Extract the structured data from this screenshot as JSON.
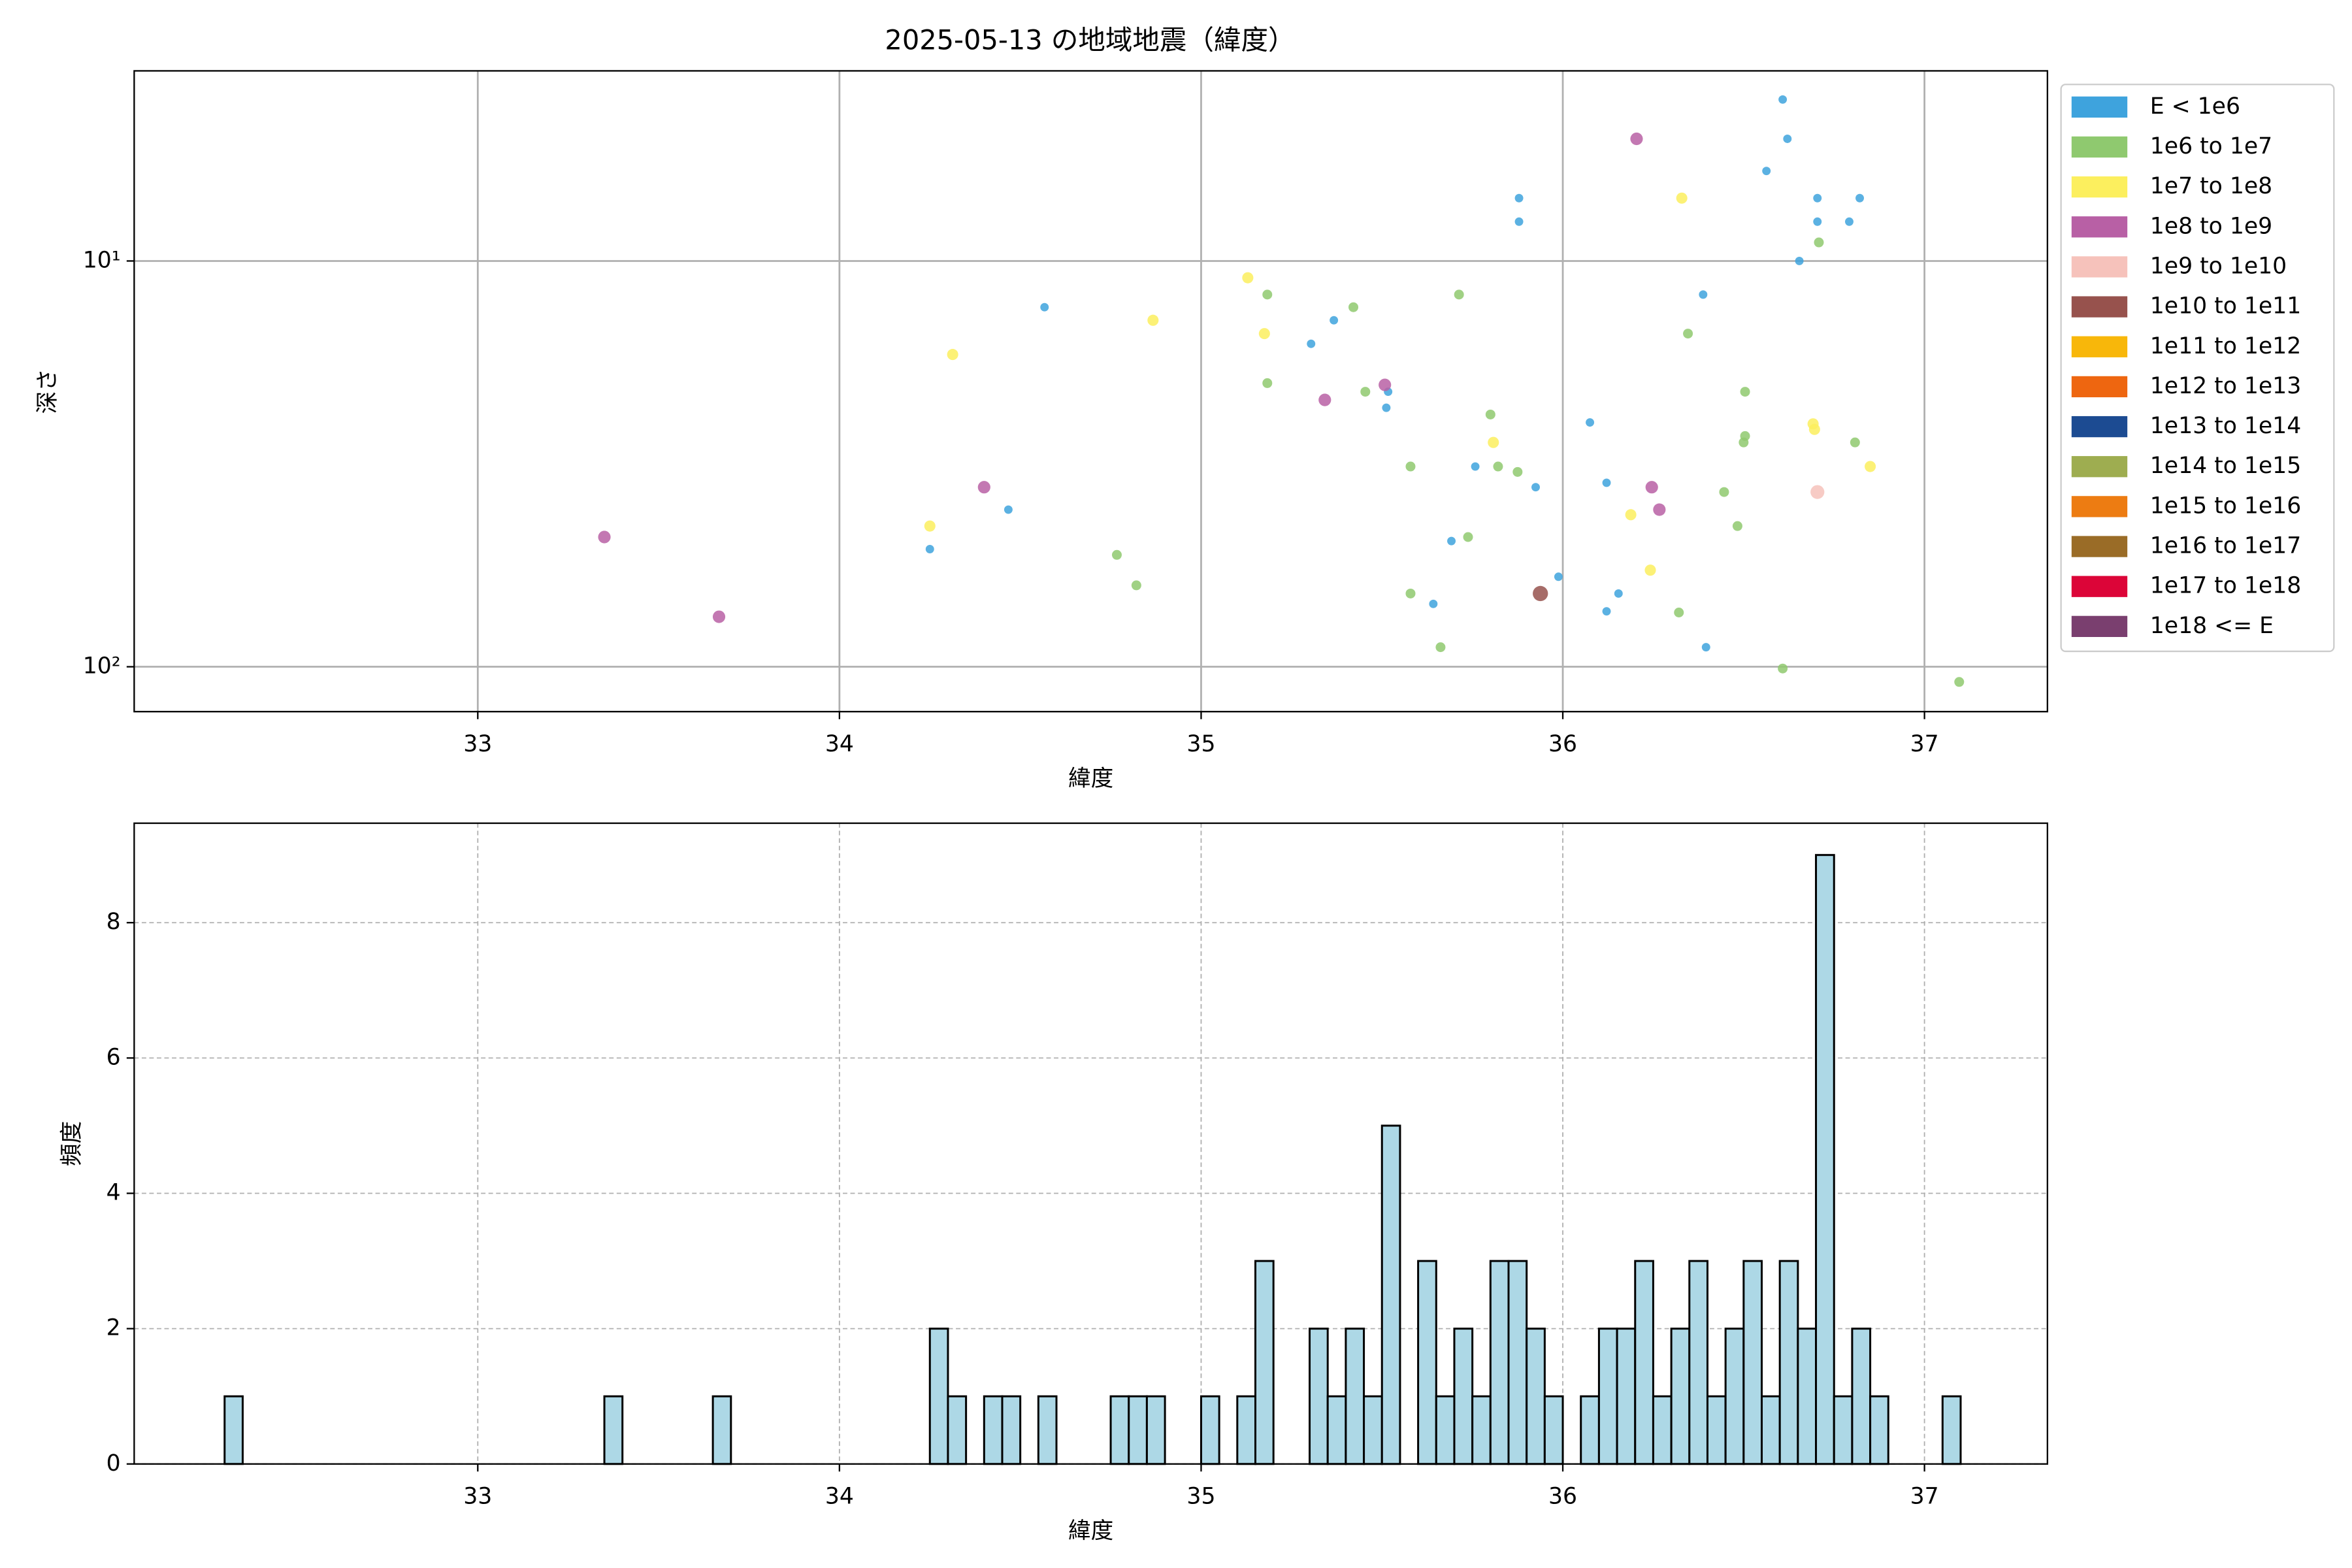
{
  "chart_data": [
    {
      "type": "scatter",
      "title": "2025-05-13 の地域地震（緯度）",
      "xlabel": "緯度",
      "ylabel": "深さ",
      "xlim": [
        32.05,
        37.34
      ],
      "ylim": [
        3.4,
        129
      ],
      "yscale": "log",
      "invert_y": true,
      "xticks": [
        33,
        34,
        35,
        36,
        37
      ],
      "yticks": [
        {
          "value": 10,
          "label": "10¹"
        },
        {
          "value": 100,
          "label": "10²"
        }
      ],
      "grid": true,
      "legend": "outside-right",
      "series": [
        {
          "name": "E < 1e6",
          "color": "#3ea3dd",
          "x": [
            36.608,
            36.621,
            36.563,
            35.879,
            36.704,
            36.821,
            35.879,
            36.704,
            36.792,
            36.654,
            36.388,
            34.567,
            35.367,
            35.304,
            35.517,
            35.512,
            36.075,
            35.758,
            36.121,
            35.925,
            34.467,
            35.692,
            34.25,
            35.988,
            36.154,
            35.642,
            36.121,
            36.396
          ],
          "y": [
            4.0,
            5.0,
            6.0,
            7.0,
            7.0,
            7.0,
            8.0,
            8.0,
            8.0,
            10,
            12.1,
            13.0,
            14.0,
            16.0,
            21.0,
            23.0,
            25.0,
            32.1,
            35.2,
            36.1,
            41,
            49,
            51.3,
            60,
            66,
            70,
            73,
            89.5
          ]
        },
        {
          "name": "1e6 to 1e7",
          "color": "#8fc96f",
          "x": [
            36.708,
            35.183,
            35.713,
            35.421,
            36.346,
            35.183,
            35.454,
            36.504,
            35.8,
            36.504,
            36.5,
            36.808,
            35.579,
            35.821,
            35.875,
            36.446,
            36.483,
            35.738,
            34.767,
            34.821,
            35.579,
            36.321,
            35.662,
            36.608,
            37.096
          ],
          "y": [
            9.0,
            12.1,
            12.1,
            13.0,
            15.1,
            20,
            21,
            21,
            23.9,
            27,
            28,
            28,
            32.1,
            32.1,
            33.1,
            37.1,
            45,
            47.9,
            53,
            63,
            66,
            73.5,
            89.5,
            101,
            109
          ]
        },
        {
          "name": "1e7 to 1e8",
          "color": "#fcef5e",
          "x": [
            35.129,
            34.867,
            35.175,
            34.313,
            36.329,
            35.808,
            36.692,
            36.696,
            36.85,
            34.25,
            36.188,
            36.242
          ],
          "y": [
            11,
            14,
            15.1,
            17,
            7.0,
            28,
            25.2,
            26,
            32.1,
            45,
            42.2,
            57.8
          ]
        },
        {
          "name": "1e8 to 1e9",
          "color": "#b860a5",
          "x": [
            36.204,
            35.508,
            35.342,
            34.4,
            36.246,
            36.267,
            33.35,
            33.667
          ],
          "y": [
            5.0,
            20.2,
            22,
            36.1,
            36.1,
            41,
            47.9,
            75.3
          ]
        },
        {
          "name": "1e9 to 1e10",
          "color": "#f6c2bb",
          "x": [
            36.704
          ],
          "y": [
            37.1
          ]
        },
        {
          "name": "1e10 to 1e11",
          "color": "#97524d",
          "x": [
            35.938
          ],
          "y": [
            66
          ]
        },
        {
          "name": "1e11 to 1e12",
          "color": "#f8b70a",
          "x": [],
          "y": []
        },
        {
          "name": "1e12 to 1e13",
          "color": "#ee6610",
          "x": [],
          "y": []
        },
        {
          "name": "1e13 to 1e14",
          "color": "#1c4b92",
          "x": [],
          "y": []
        },
        {
          "name": "1e14 to 1e15",
          "color": "#9ead50",
          "x": [],
          "y": []
        },
        {
          "name": "1e15 to 1e16",
          "color": "#ed7c12",
          "x": [],
          "y": []
        },
        {
          "name": "1e16 to 1e17",
          "color": "#9a6c27",
          "x": [],
          "y": []
        },
        {
          "name": "1e17 to 1e18",
          "color": "#dc0538",
          "x": [],
          "y": []
        },
        {
          "name": "1e18 <= E",
          "color": "#7a3f6f",
          "x": [],
          "y": []
        }
      ]
    },
    {
      "type": "histogram",
      "xlabel": "緯度",
      "ylabel": "頻度",
      "xlim": [
        32.05,
        37.34
      ],
      "ylim": [
        0,
        9.47
      ],
      "xticks": [
        33,
        34,
        35,
        36,
        37
      ],
      "yticks": [
        0,
        2,
        4,
        6,
        8
      ],
      "grid": true,
      "color": "#add8e6",
      "edgecolor": "#000000",
      "bins": [
        32.3,
        32.35,
        32.4,
        32.45,
        32.5,
        32.55,
        32.6,
        32.65,
        32.7,
        32.75,
        32.8,
        32.85,
        32.9,
        32.95,
        33.0,
        33.05,
        33.1,
        33.15,
        33.2,
        33.25,
        33.3,
        33.35,
        33.4,
        33.45,
        33.5,
        33.55,
        33.6,
        33.65,
        33.7,
        33.75,
        33.8,
        33.85,
        33.9,
        33.95,
        34.0,
        34.05,
        34.1,
        34.15,
        34.2,
        34.25,
        34.3,
        34.35,
        34.4,
        34.45,
        34.5,
        34.55,
        34.6,
        34.65,
        34.7,
        34.75,
        34.8,
        34.85,
        34.9,
        34.95,
        35.0,
        35.05,
        35.1,
        35.15,
        35.2,
        35.25,
        35.3,
        35.35,
        35.4,
        35.45,
        35.5,
        35.55,
        35.6,
        35.65,
        35.7,
        35.75,
        35.8,
        35.85,
        35.9,
        35.95,
        36.0,
        36.05,
        36.1,
        36.15,
        36.2,
        36.25,
        36.3,
        36.35,
        36.4,
        36.45,
        36.5,
        36.55,
        36.6,
        36.65,
        36.7,
        36.75,
        36.8,
        36.85,
        36.9,
        36.95,
        37.0,
        37.05,
        37.1
      ],
      "counts": [
        1,
        0,
        0,
        0,
        0,
        0,
        0,
        0,
        0,
        0,
        0,
        0,
        0,
        0,
        0,
        0,
        0,
        0,
        0,
        0,
        0,
        1,
        0,
        0,
        0,
        0,
        0,
        1,
        0,
        0,
        0,
        0,
        0,
        0,
        0,
        0,
        0,
        0,
        0,
        2,
        1,
        0,
        1,
        1,
        0,
        1,
        0,
        0,
        0,
        1,
        1,
        1,
        0,
        0,
        1,
        0,
        1,
        3,
        0,
        0,
        2,
        1,
        2,
        1,
        5,
        0,
        3,
        1,
        2,
        1,
        3,
        3,
        2,
        1,
        0,
        1,
        2,
        2,
        3,
        1,
        2,
        3,
        1,
        2,
        3,
        1,
        3,
        2,
        9,
        1,
        2,
        1,
        0,
        0,
        0,
        1
      ]
    }
  ]
}
